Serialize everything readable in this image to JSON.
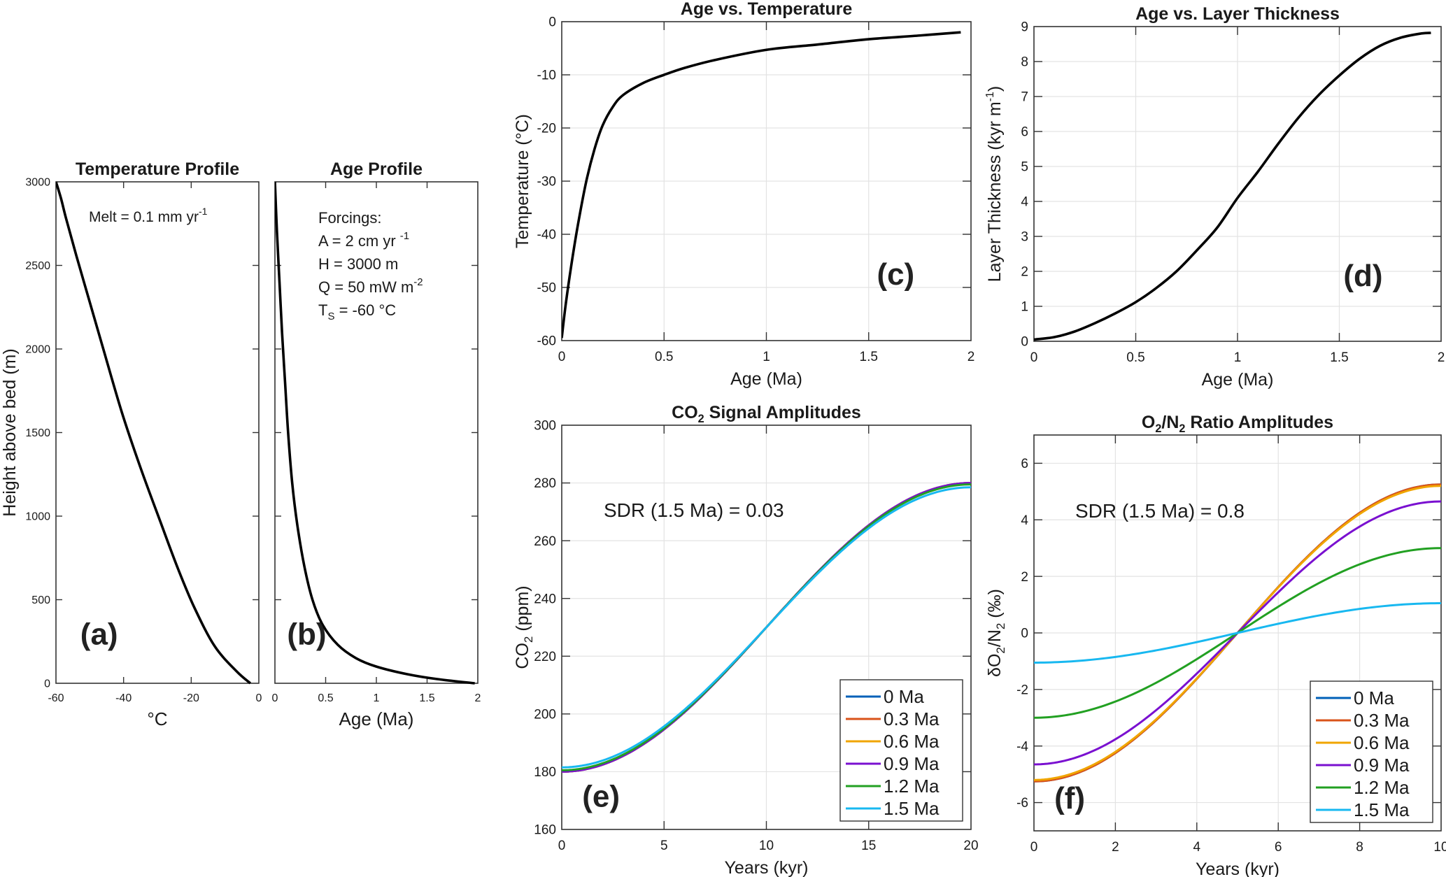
{
  "chart_data": [
    {
      "id": "a",
      "type": "line",
      "title": "Temperature Profile",
      "xlabel": "°C",
      "ylabel": "Height above bed (m)",
      "xlim": [
        -60,
        0
      ],
      "ylim": [
        0,
        3000
      ],
      "xticks": [
        -60,
        -40,
        -20,
        0
      ],
      "yticks": [
        0,
        500,
        1000,
        1500,
        2000,
        2500,
        3000
      ],
      "grid": false,
      "panel_label": "(a)",
      "annotation": {
        "text": "Melt  =  0.1  mm  yr",
        "sup": "-1"
      },
      "series": [
        {
          "name": "temperature",
          "color": "#000000",
          "points": [
            [
              -60,
              3000
            ],
            [
              -58.5,
              2900
            ],
            [
              -57,
              2780
            ],
            [
              -54,
              2560
            ],
            [
              -50,
              2280
            ],
            [
              -46,
              2000
            ],
            [
              -40.5,
              1620
            ],
            [
              -35,
              1290
            ],
            [
              -29,
              960
            ],
            [
              -24,
              690
            ],
            [
              -19,
              450
            ],
            [
              -13,
              220
            ],
            [
              -6.5,
              70
            ],
            [
              -2.5,
              0
            ]
          ]
        }
      ]
    },
    {
      "id": "b",
      "type": "line",
      "title": "Age Profile",
      "xlabel": "Age (Ma)",
      "ylabel": "",
      "xlim": [
        0,
        2
      ],
      "ylim": [
        0,
        3000
      ],
      "xticks": [
        0,
        0.5,
        1,
        1.5,
        2
      ],
      "xtick_labels": [
        "0",
        "0.5",
        "1",
        "1.5",
        "2"
      ],
      "yticks": [
        0,
        500,
        1000,
        1500,
        2000,
        2500,
        3000
      ],
      "grid": false,
      "panel_label": "(b)",
      "annotation_lines": [
        {
          "text": "Forcings:",
          "sup": ""
        },
        {
          "text": "A  =  2  cm  yr ",
          "sup": "-1"
        },
        {
          "text": "H  =  3000  m",
          "sup": ""
        },
        {
          "text": "Q  =  50  mW  m",
          "sup": "-2"
        },
        {
          "text": "T",
          "sub": "S",
          "rest": "  =  -60  °C"
        }
      ],
      "series": [
        {
          "name": "age",
          "color": "#000000",
          "points": [
            [
              0,
              3000
            ],
            [
              0.02,
              2700
            ],
            [
              0.045,
              2400
            ],
            [
              0.07,
              2100
            ],
            [
              0.1,
              1800
            ],
            [
              0.13,
              1500
            ],
            [
              0.17,
              1200
            ],
            [
              0.22,
              950
            ],
            [
              0.29,
              700
            ],
            [
              0.37,
              500
            ],
            [
              0.47,
              350
            ],
            [
              0.62,
              230
            ],
            [
              0.8,
              150
            ],
            [
              1.0,
              100
            ],
            [
              1.3,
              55
            ],
            [
              1.6,
              25
            ],
            [
              1.97,
              0
            ]
          ]
        }
      ]
    },
    {
      "id": "c",
      "type": "line",
      "title": "Age vs. Temperature",
      "xlabel": "Age (Ma)",
      "ylabel": "Temperature  (°C)",
      "xlim": [
        0,
        2
      ],
      "ylim": [
        -60,
        0
      ],
      "xticks": [
        0,
        0.5,
        1,
        1.5,
        2
      ],
      "xtick_labels": [
        "0",
        "0.5",
        "1",
        "1.5",
        "2"
      ],
      "yticks": [
        -60,
        -50,
        -40,
        -30,
        -20,
        -10,
        0
      ],
      "grid": true,
      "panel_label": "(c)",
      "series": [
        {
          "name": "temperature",
          "color": "#000000",
          "points": [
            [
              0,
              -59.5
            ],
            [
              0.02,
              -53
            ],
            [
              0.05,
              -45
            ],
            [
              0.08,
              -38
            ],
            [
              0.12,
              -30
            ],
            [
              0.16,
              -24
            ],
            [
              0.2,
              -19.5
            ],
            [
              0.25,
              -16
            ],
            [
              0.3,
              -13.8
            ],
            [
              0.4,
              -11.5
            ],
            [
              0.5,
              -10
            ],
            [
              0.6,
              -8.7
            ],
            [
              0.75,
              -7.2
            ],
            [
              1.0,
              -5.3
            ],
            [
              1.25,
              -4.3
            ],
            [
              1.5,
              -3.3
            ],
            [
              1.75,
              -2.6
            ],
            [
              1.95,
              -2.0
            ]
          ]
        }
      ]
    },
    {
      "id": "d",
      "type": "line",
      "title": "Age vs. Layer Thickness",
      "xlabel": "Age (Ma)",
      "ylabel": "Layer  Thickness  (kyr  m",
      "ylabel_sup": "-1",
      "ylabel_end": ")",
      "xlim": [
        0,
        2
      ],
      "ylim": [
        0,
        9
      ],
      "xticks": [
        0,
        0.5,
        1,
        1.5,
        2
      ],
      "xtick_labels": [
        "0",
        "0.5",
        "1",
        "1.5",
        "2"
      ],
      "yticks": [
        0,
        1,
        2,
        3,
        4,
        5,
        6,
        7,
        8,
        9
      ],
      "grid": true,
      "panel_label": "(d)",
      "series": [
        {
          "name": "layer_thickness",
          "color": "#000000",
          "points": [
            [
              0,
              0.05
            ],
            [
              0.1,
              0.12
            ],
            [
              0.2,
              0.28
            ],
            [
              0.3,
              0.52
            ],
            [
              0.4,
              0.8
            ],
            [
              0.5,
              1.12
            ],
            [
              0.6,
              1.52
            ],
            [
              0.7,
              2.0
            ],
            [
              0.8,
              2.6
            ],
            [
              0.9,
              3.25
            ],
            [
              1.0,
              4.1
            ],
            [
              1.1,
              4.85
            ],
            [
              1.2,
              5.65
            ],
            [
              1.3,
              6.4
            ],
            [
              1.4,
              7.05
            ],
            [
              1.5,
              7.6
            ],
            [
              1.6,
              8.08
            ],
            [
              1.7,
              8.45
            ],
            [
              1.8,
              8.68
            ],
            [
              1.9,
              8.8
            ],
            [
              1.95,
              8.82
            ]
          ]
        }
      ]
    },
    {
      "id": "e",
      "type": "line",
      "title": "CO",
      "title_sub": "2",
      "title_rest": "  Signal  Amplitudes",
      "xlabel": "Years (kyr)",
      "ylabel": "CO",
      "ylabel_sub": "2",
      "ylabel_rest": "  (ppm)",
      "xlim": [
        0,
        20
      ],
      "ylim": [
        160,
        300
      ],
      "xticks": [
        0,
        5,
        10,
        15,
        20
      ],
      "yticks": [
        160,
        180,
        200,
        220,
        240,
        260,
        280,
        300
      ],
      "grid": true,
      "panel_label": "(e)",
      "annotation": {
        "text": "SDR (1.5 Ma) = 0.03"
      },
      "legend": {
        "location": "bottom-right"
      },
      "curve": "cosine",
      "center": 230,
      "series": [
        {
          "name": "0 Ma",
          "color": "#0060b8",
          "amplitude": 50
        },
        {
          "name": "0.3 Ma",
          "color": "#d9531a",
          "amplitude": 50
        },
        {
          "name": "0.6 Ma",
          "color": "#f0a500",
          "amplitude": 50
        },
        {
          "name": "0.9 Ma",
          "color": "#7a10d0",
          "amplitude": 50
        },
        {
          "name": "1.2 Ma",
          "color": "#22a022",
          "amplitude": 49.5
        },
        {
          "name": "1.5 Ma",
          "color": "#18b8f0",
          "amplitude": 48.5
        }
      ]
    },
    {
      "id": "f",
      "type": "line",
      "title": "O",
      "title_sub": "2",
      "title_mid": "/N",
      "title_sub2": "2",
      "title_rest": "  Ratio  Amplitudes",
      "xlabel": "Years (kyr)",
      "ylabel": "δO",
      "ylabel_sub": "2",
      "ylabel_mid": "/N",
      "ylabel_sub2": "2",
      "ylabel_rest": "  (‰)",
      "xlim": [
        0,
        10
      ],
      "ylim": [
        -7,
        7
      ],
      "xticks": [
        0,
        2,
        4,
        6,
        8,
        10
      ],
      "yticks": [
        -6,
        -4,
        -2,
        0,
        2,
        4,
        6
      ],
      "grid": true,
      "panel_label": "(f)",
      "annotation": {
        "text": "SDR (1.5 Ma) = 0.8"
      },
      "legend": {
        "location": "bottom-right"
      },
      "curve": "cosine",
      "center": 0,
      "series": [
        {
          "name": "0 Ma",
          "color": "#0060b8",
          "amplitude": 5.25
        },
        {
          "name": "0.3 Ma",
          "color": "#d9531a",
          "amplitude": 5.25
        },
        {
          "name": "0.6 Ma",
          "color": "#f0a500",
          "amplitude": 5.2
        },
        {
          "name": "0.9 Ma",
          "color": "#7a10d0",
          "amplitude": 4.65
        },
        {
          "name": "1.2 Ma",
          "color": "#22a022",
          "amplitude": 3.0
        },
        {
          "name": "1.5 Ma",
          "color": "#18b8f0",
          "amplitude": 1.05
        }
      ]
    }
  ]
}
